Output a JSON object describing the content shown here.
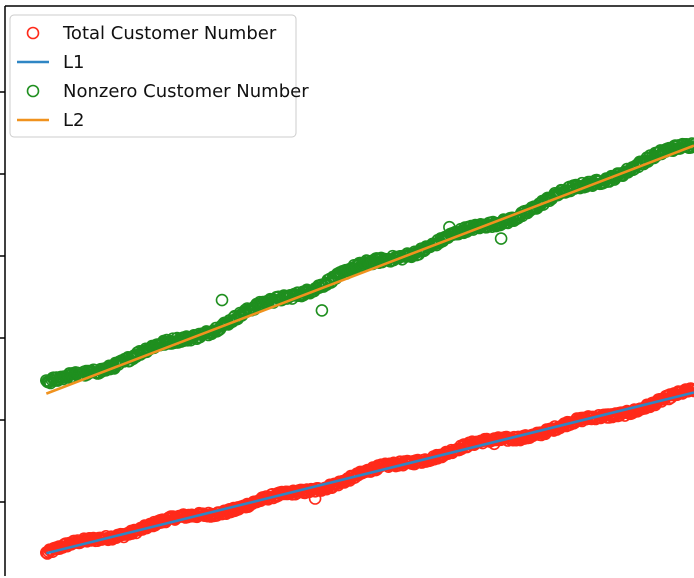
{
  "chart_data": {
    "type": "scatter",
    "title": "",
    "xlabel": "",
    "ylabel": "",
    "xlim": [
      0,
      1000
    ],
    "ylim": [
      0,
      1000
    ],
    "grid": false,
    "legend_position": "top-left",
    "series": [
      {
        "name": "Total Customer Number",
        "kind": "scatter",
        "color": "#ff2a1a",
        "marker": "circle",
        "x_start": 60,
        "x_end": 1000,
        "y_start": 40,
        "y_end": 322,
        "wave_amplitude": 8,
        "outliers": [
          {
            "x": 450,
            "y": 136
          },
          {
            "x": 710,
            "y": 232
          }
        ]
      },
      {
        "name": "L1",
        "kind": "line",
        "color": "#2f86c4",
        "x": [
          60,
          1000
        ],
        "y": [
          40,
          322
        ]
      },
      {
        "name": "Nonzero Customer Number",
        "kind": "scatter",
        "color": "#1f8f1f",
        "marker": "circle",
        "x_start": 60,
        "x_end": 1000,
        "y_start": 330,
        "y_end": 755,
        "wave_amplitude": 10,
        "outliers": [
          {
            "x": 460,
            "y": 466
          },
          {
            "x": 720,
            "y": 592
          },
          {
            "x": 645,
            "y": 612
          },
          {
            "x": 315,
            "y": 484
          }
        ]
      },
      {
        "name": "L2",
        "kind": "line",
        "color": "#f0921e",
        "x": [
          60,
          1000
        ],
        "y": [
          320,
          755
        ]
      }
    ]
  }
}
